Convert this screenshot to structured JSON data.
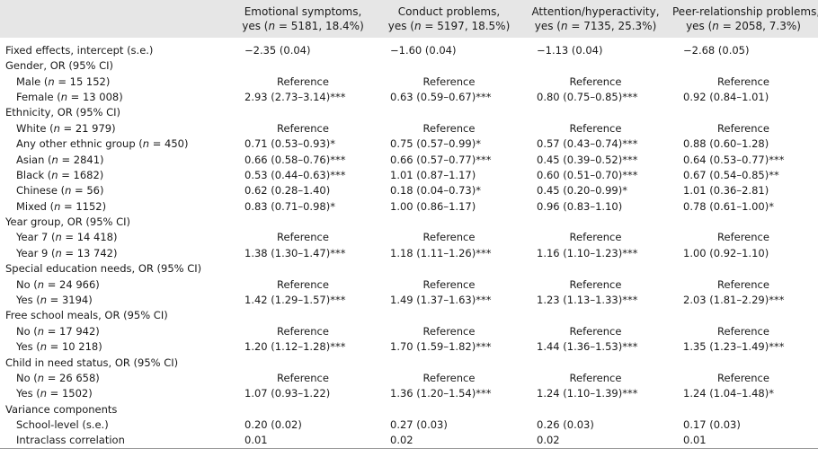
{
  "header": {
    "col0": "",
    "columns": [
      {
        "title": "Emotional symptoms,",
        "sub_pre": "yes (",
        "n": "n",
        "sub_post": " = 5181, 18.4%)"
      },
      {
        "title": "Conduct problems,",
        "sub_pre": "yes (",
        "n": "n",
        "sub_post": " = 5197, 18.5%)"
      },
      {
        "title": "Attention/hyperactivity,",
        "sub_pre": "yes (",
        "n": "n",
        "sub_post": " = 7135, 25.3%)"
      },
      {
        "title": "Peer-relationship problems,",
        "sub_pre": "yes (",
        "n": "n",
        "sub_post": " = 2058, 7.3%)"
      }
    ]
  },
  "rows": [
    {
      "type": "section",
      "label": "Fixed effects, intercept (s.e.)",
      "cells": [
        "−2.35 (0.04)",
        "−1.60 (0.04)",
        "−1.13 (0.04)",
        "−2.68 (0.05)"
      ]
    },
    {
      "type": "section",
      "label": "Gender, OR (95% CI)",
      "cells": [
        "",
        "",
        "",
        ""
      ]
    },
    {
      "type": "sub",
      "pre": "Male (",
      "n": "n",
      "post": " = 15 152)",
      "cells": [
        "Reference",
        "Reference",
        "Reference",
        "Reference"
      ]
    },
    {
      "type": "sub",
      "pre": "Female (",
      "n": "n",
      "post": " = 13 008)",
      "cells": [
        "2.93 (2.73–3.14)***",
        "0.63 (0.59–0.67)***",
        "0.80 (0.75–0.85)***",
        "0.92 (0.84–1.01)"
      ]
    },
    {
      "type": "section",
      "label": "Ethnicity, OR (95% CI)",
      "cells": [
        "",
        "",
        "",
        ""
      ]
    },
    {
      "type": "sub",
      "pre": "White (",
      "n": "n",
      "post": " = 21 979)",
      "cells": [
        "Reference",
        "Reference",
        "Reference",
        "Reference"
      ]
    },
    {
      "type": "sub",
      "pre": "Any other ethnic group (",
      "n": "n",
      "post": " = 450)",
      "cells": [
        "0.71 (0.53–0.93)*",
        "0.75 (0.57–0.99)*",
        "0.57 (0.43–0.74)***",
        "0.88 (0.60–1.28)"
      ]
    },
    {
      "type": "sub",
      "pre": "Asian (",
      "n": "n",
      "post": " = 2841)",
      "cells": [
        "0.66 (0.58–0.76)***",
        "0.66 (0.57–0.77)***",
        "0.45 (0.39–0.52)***",
        "0.64 (0.53–0.77)***"
      ]
    },
    {
      "type": "sub",
      "pre": "Black (",
      "n": "n",
      "post": " = 1682)",
      "cells": [
        "0.53 (0.44–0.63)***",
        "1.01 (0.87–1.17)",
        "0.60 (0.51–0.70)***",
        "0.67 (0.54–0.85)**"
      ]
    },
    {
      "type": "sub",
      "pre": "Chinese (",
      "n": "n",
      "post": " = 56)",
      "cells": [
        "0.62 (0.28–1.40)",
        "0.18 (0.04–0.73)*",
        "0.45 (0.20–0.99)*",
        "1.01 (0.36–2.81)"
      ]
    },
    {
      "type": "sub",
      "pre": "Mixed (",
      "n": "n",
      "post": " = 1152)",
      "cells": [
        "0.83 (0.71–0.98)*",
        "1.00 (0.86–1.17)",
        "0.96 (0.83–1.10)",
        "0.78 (0.61–1.00)*"
      ]
    },
    {
      "type": "section",
      "label": "Year group, OR (95% CI)",
      "cells": [
        "",
        "",
        "",
        ""
      ]
    },
    {
      "type": "sub",
      "pre": "Year 7 (",
      "n": "n",
      "post": " = 14 418)",
      "cells": [
        "Reference",
        "Reference",
        "Reference",
        "Reference"
      ]
    },
    {
      "type": "sub",
      "pre": "Year 9 (",
      "n": "n",
      "post": " = 13 742)",
      "cells": [
        "1.38 (1.30–1.47)***",
        "1.18 (1.11–1.26)***",
        "1.16 (1.10–1.23)***",
        "1.00 (0.92–1.10)"
      ]
    },
    {
      "type": "section",
      "label": "Special education needs, OR (95% CI)",
      "cells": [
        "",
        "",
        "",
        ""
      ]
    },
    {
      "type": "sub",
      "pre": "No (",
      "n": "n",
      "post": " = 24 966)",
      "cells": [
        "Reference",
        "Reference",
        "Reference",
        "Reference"
      ]
    },
    {
      "type": "sub",
      "pre": "Yes (",
      "n": "n",
      "post": " = 3194)",
      "cells": [
        "1.42 (1.29–1.57)***",
        "1.49 (1.37–1.63)***",
        "1.23 (1.13–1.33)***",
        "2.03 (1.81–2.29)***"
      ]
    },
    {
      "type": "section",
      "label": "Free school meals, OR (95% CI)",
      "cells": [
        "",
        "",
        "",
        ""
      ]
    },
    {
      "type": "sub",
      "pre": "No (",
      "n": "n",
      "post": " = 17 942)",
      "cells": [
        "Reference",
        "Reference",
        "Reference",
        "Reference"
      ]
    },
    {
      "type": "sub",
      "pre": "Yes (",
      "n": "n",
      "post": " = 10 218)",
      "cells": [
        "1.20 (1.12–1.28)***",
        "1.70 (1.59–1.82)***",
        "1.44 (1.36–1.53)***",
        "1.35 (1.23–1.49)***"
      ]
    },
    {
      "type": "section",
      "label": "Child in need status, OR (95% CI)",
      "cells": [
        "",
        "",
        "",
        ""
      ]
    },
    {
      "type": "sub",
      "pre": "No (",
      "n": "n",
      "post": " = 26 658)",
      "cells": [
        "Reference",
        "Reference",
        "Reference",
        "Reference"
      ]
    },
    {
      "type": "sub",
      "pre": "Yes (",
      "n": "n",
      "post": " = 1502)",
      "cells": [
        "1.07 (0.93–1.22)",
        "1.36 (1.20–1.54)***",
        "1.24 (1.10–1.39)***",
        "1.24 (1.04–1.48)*"
      ]
    },
    {
      "type": "section",
      "label": "Variance components",
      "cells": [
        "",
        "",
        "",
        ""
      ]
    },
    {
      "type": "subplain",
      "label": "School-level (s.e.)",
      "cells": [
        "0.20 (0.02)",
        "0.27 (0.03)",
        "0.26 (0.03)",
        "0.17 (0.03)"
      ]
    },
    {
      "type": "subplain",
      "label": "Intraclass correlation",
      "cells": [
        "0.01",
        "0.02",
        "0.02",
        "0.01"
      ]
    }
  ]
}
